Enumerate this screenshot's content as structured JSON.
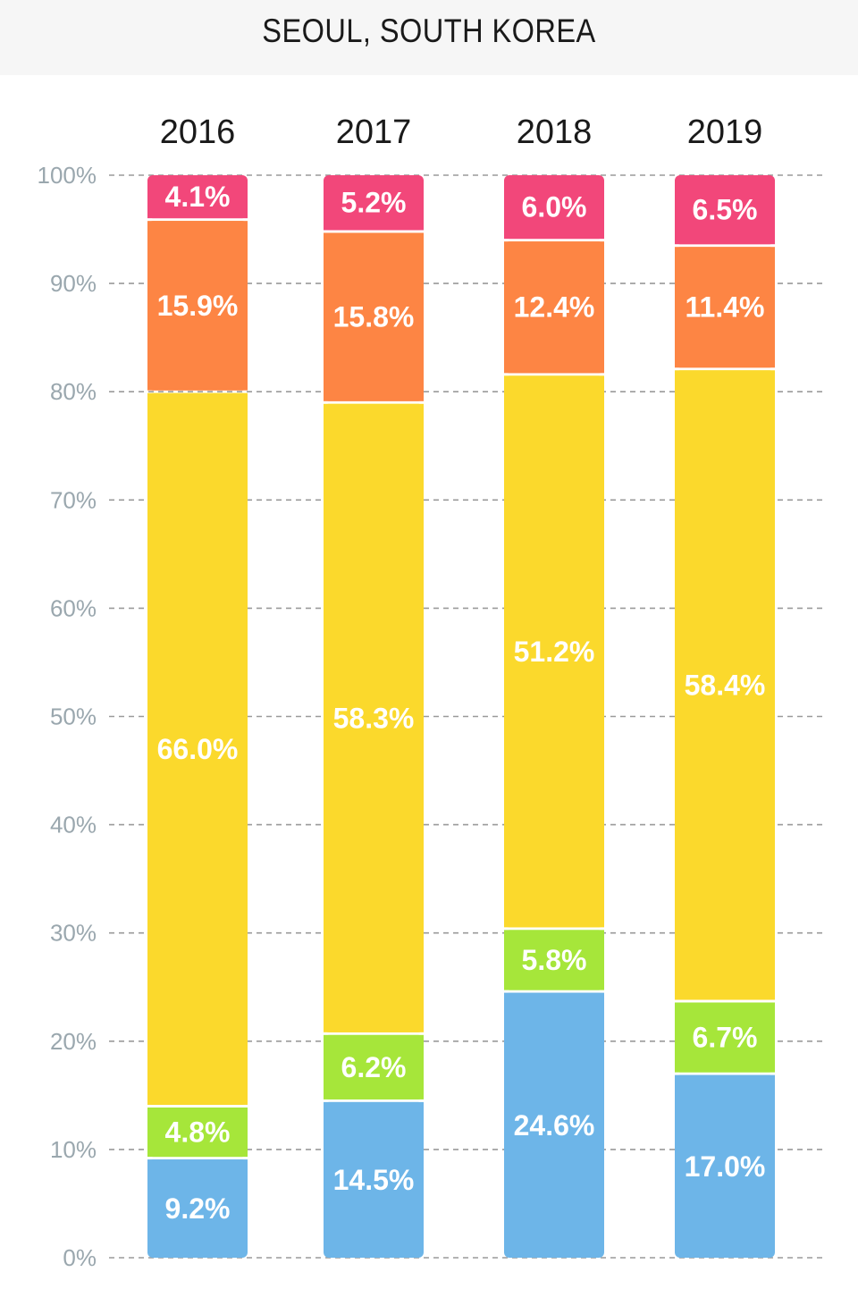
{
  "title": "SEOUL, SOUTH KOREA",
  "chart_data": {
    "type": "bar",
    "stacked": true,
    "title": "SEOUL, SOUTH KOREA",
    "categories": [
      "2016",
      "2017",
      "2018",
      "2019"
    ],
    "ylim": [
      0,
      100
    ],
    "yticks": [
      "0%",
      "10%",
      "20%",
      "30%",
      "40%",
      "50%",
      "60%",
      "70%",
      "80%",
      "90%",
      "100%"
    ],
    "grid": true,
    "series": [
      {
        "color": "#6db5e8",
        "values": [
          9.2,
          14.5,
          24.6,
          17.0
        ],
        "labels": [
          "9.2%",
          "14.5%",
          "24.6%",
          "17.0%"
        ]
      },
      {
        "color": "#a6e63a",
        "values": [
          4.8,
          6.2,
          5.8,
          6.7
        ],
        "labels": [
          "4.8%",
          "6.2%",
          "5.8%",
          "6.7%"
        ]
      },
      {
        "color": "#fbd92c",
        "values": [
          66.0,
          58.3,
          51.2,
          58.4
        ],
        "labels": [
          "66.0%",
          "58.3%",
          "51.2%",
          "58.4%"
        ]
      },
      {
        "color": "#fd8544",
        "values": [
          15.9,
          15.8,
          12.4,
          11.4
        ],
        "labels": [
          "15.9%",
          "15.8%",
          "12.4%",
          "11.4%"
        ]
      },
      {
        "color": "#f2477a",
        "values": [
          4.1,
          5.2,
          6.0,
          6.5
        ],
        "labels": [
          "4.1%",
          "5.2%",
          "6.0%",
          "6.5%"
        ]
      }
    ]
  }
}
